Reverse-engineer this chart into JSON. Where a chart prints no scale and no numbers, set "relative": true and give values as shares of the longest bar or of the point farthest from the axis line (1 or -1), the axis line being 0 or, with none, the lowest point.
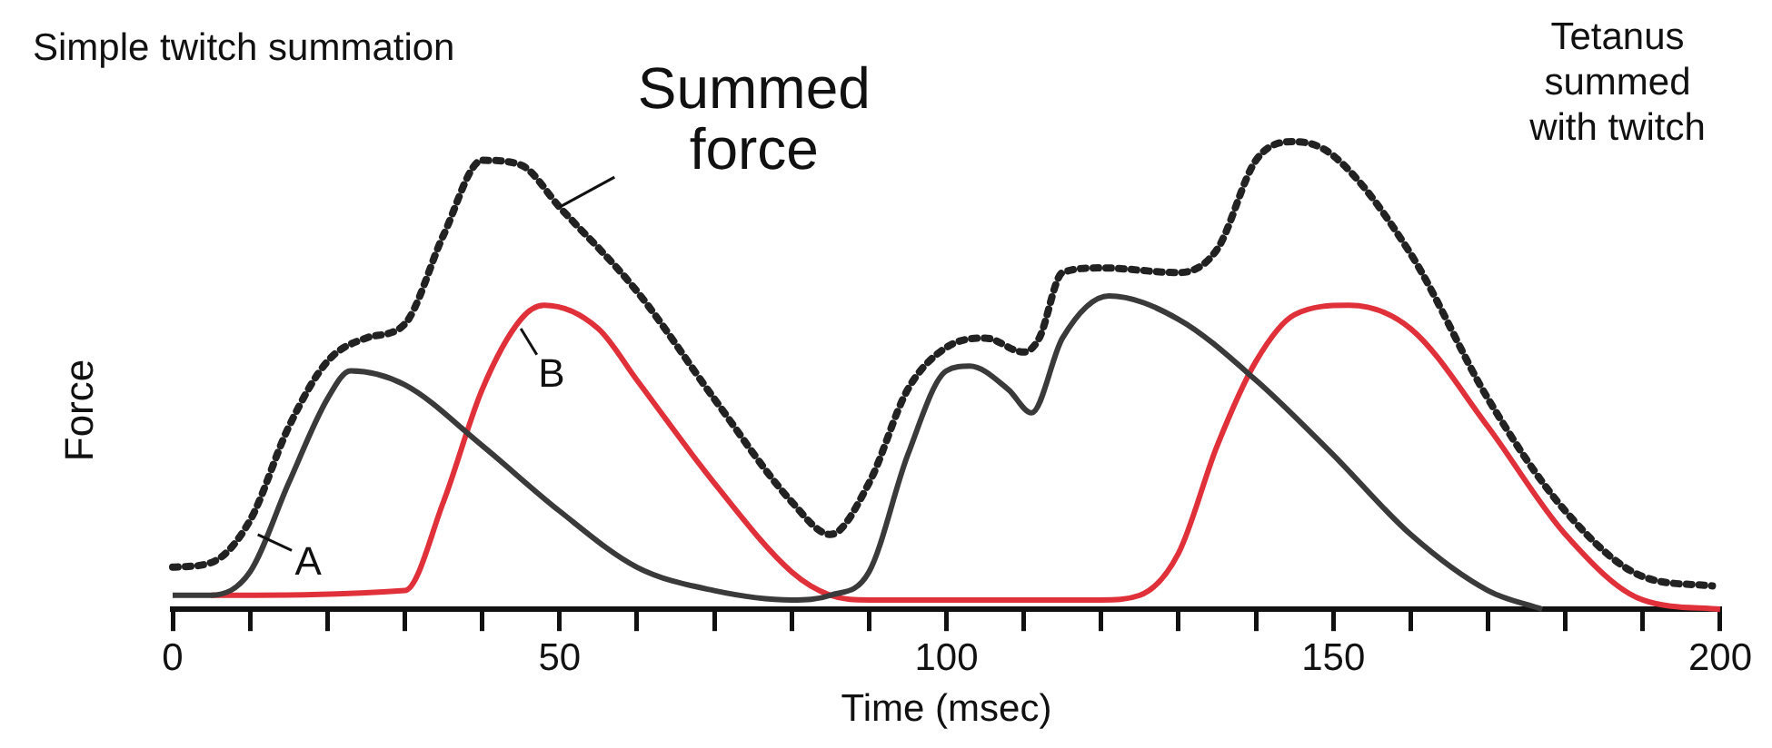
{
  "chart_data": {
    "type": "line",
    "relative": true,
    "xlabel": "Time (msec)",
    "ylabel": "Force",
    "xlim": [
      0,
      200
    ],
    "xticks": [
      0,
      {
        "value": 10,
        "label": null
      },
      {
        "value": 20,
        "label": null
      },
      {
        "value": 30,
        "label": null
      },
      {
        "value": 40,
        "label": null
      },
      50,
      {
        "value": 60,
        "label": null
      },
      {
        "value": 70,
        "label": null
      },
      {
        "value": 80,
        "label": null
      },
      {
        "value": 90,
        "label": null
      },
      100,
      {
        "value": 110,
        "label": null
      },
      {
        "value": 120,
        "label": null
      },
      {
        "value": 130,
        "label": null
      },
      {
        "value": 140,
        "label": null
      },
      150,
      {
        "value": 160,
        "label": null
      },
      {
        "value": 170,
        "label": null
      },
      {
        "value": 180,
        "label": null
      },
      {
        "value": 190,
        "label": null
      },
      200
    ],
    "tick_labels": "x",
    "legend": false,
    "grid": false,
    "marker": "none",
    "series": [
      {
        "color": "#3a3a3a",
        "line_style": "solid",
        "x": [
          0,
          5,
          10,
          15,
          20,
          23,
          30,
          40,
          50,
          60,
          70,
          80,
          85,
          90,
          95,
          100,
          103,
          108,
          111,
          115,
          121,
          130,
          140,
          150,
          160,
          170,
          177
        ],
        "values": [
          0.03,
          0.03,
          0.08,
          0.27,
          0.45,
          0.51,
          0.48,
          0.35,
          0.21,
          0.09,
          0.04,
          0.02,
          0.03,
          0.08,
          0.33,
          0.51,
          0.52,
          0.47,
          0.42,
          0.58,
          0.67,
          0.62,
          0.49,
          0.33,
          0.16,
          0.04,
          0
        ]
      },
      {
        "color": "#e0303a",
        "line_style": "solid",
        "x": [
          5,
          30,
          35,
          40,
          45,
          48,
          55,
          60,
          70,
          80,
          85,
          90,
          120,
          125,
          130,
          135,
          140,
          145,
          152,
          160,
          170,
          180,
          190,
          200
        ],
        "values": [
          0.03,
          0.04,
          0.23,
          0.47,
          0.62,
          0.65,
          0.6,
          0.49,
          0.27,
          0.08,
          0.03,
          0.02,
          0.02,
          0.03,
          0.12,
          0.35,
          0.53,
          0.63,
          0.65,
          0.6,
          0.39,
          0.16,
          0.02,
          0
        ]
      },
      {
        "color": "#222222",
        "line_style": "dotted",
        "x": [
          0,
          5,
          10,
          15,
          20,
          25,
          30,
          35,
          40,
          45,
          50,
          60,
          70,
          80,
          85,
          90,
          95,
          100,
          105,
          110,
          112,
          115,
          120,
          130,
          135,
          140,
          145,
          150,
          160,
          170,
          180,
          190,
          199
        ],
        "values": [
          0.09,
          0.1,
          0.19,
          0.39,
          0.53,
          0.58,
          0.61,
          0.8,
          0.96,
          0.95,
          0.86,
          0.68,
          0.45,
          0.23,
          0.16,
          0.27,
          0.47,
          0.56,
          0.58,
          0.55,
          0.58,
          0.72,
          0.73,
          0.72,
          0.77,
          0.96,
          1,
          0.97,
          0.76,
          0.45,
          0.21,
          0.07,
          0.05
        ]
      }
    ],
    "annotations": [
      "Simple twitch summation",
      "Tetanus summed with twitch",
      {
        "text": "A",
        "x": 11,
        "y": 0.16
      },
      {
        "text": "B",
        "x": 45,
        "y": 0.6
      },
      {
        "text": "Summed force",
        "x": 50,
        "y": 0.86
      }
    ]
  }
}
